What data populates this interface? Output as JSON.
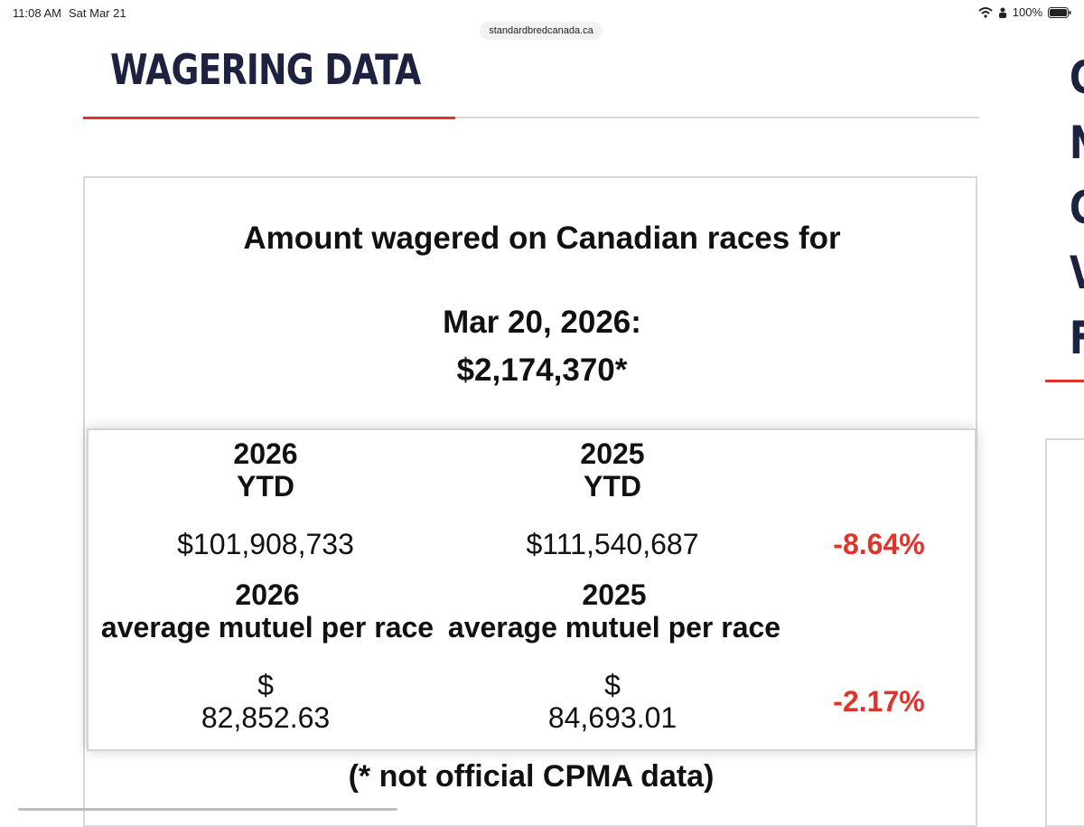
{
  "status_bar": {
    "time": "11:08 AM",
    "date": "Sat Mar 21",
    "battery": "100%"
  },
  "browser": {
    "url": "standardbredcanada.ca"
  },
  "section": {
    "heading": "WAGERING DATA"
  },
  "card": {
    "title": "Amount wagered on Canadian races for",
    "date": "Mar 20, 2026:",
    "amount": "$2,174,370*"
  },
  "table": {
    "ytd_2026_year": "2026",
    "ytd_2026_label": "YTD",
    "ytd_2025_year": "2025",
    "ytd_2025_label": "YTD",
    "ytd_2026_value": "$101,908,733",
    "ytd_2025_value": "$111,540,687",
    "ytd_change": "-8.64%",
    "avg_2026_year": "2026",
    "avg_2026_label": "average mutuel per race",
    "avg_2025_year": "2025",
    "avg_2025_label": "average mutuel per race",
    "avg_2026_symbol": "$",
    "avg_2026_value": "82,852.63",
    "avg_2025_symbol": "$",
    "avg_2025_value": "84,693.01",
    "avg_change": "-2.17%"
  },
  "footnote": "(* not official CPMA data)",
  "sidebar": {
    "letters": [
      "C",
      "N",
      "C",
      "V",
      "F"
    ]
  },
  "colors": {
    "accent": "#e0332a",
    "heading": "#1c2240",
    "border": "#d8d8d8"
  }
}
